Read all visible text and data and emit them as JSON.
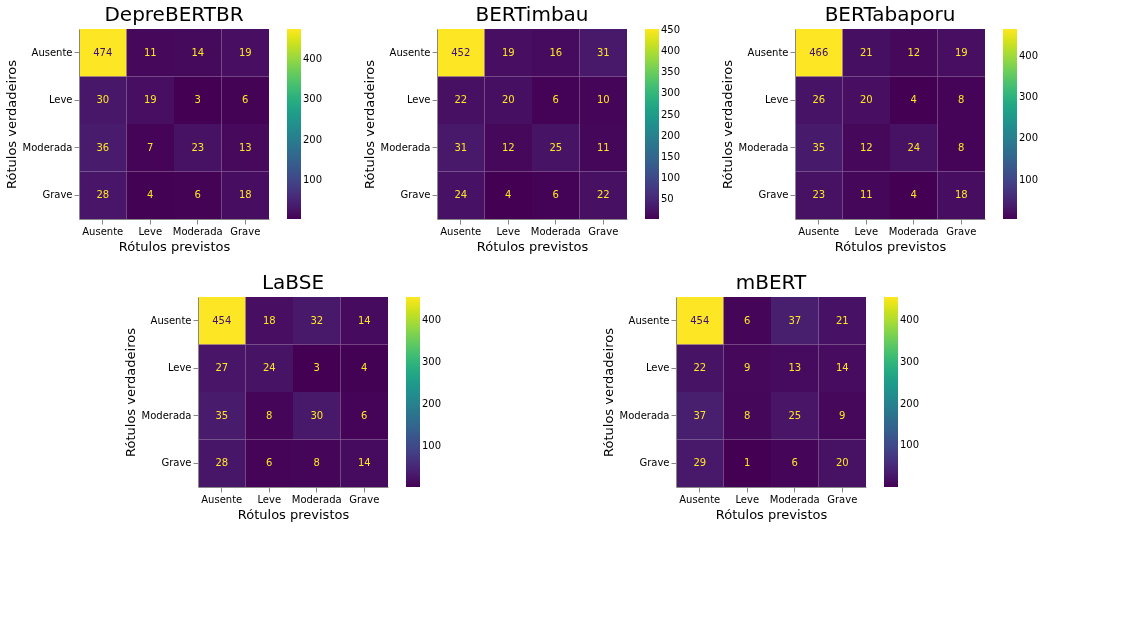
{
  "chart_data": [
    {
      "type": "heatmap",
      "title": "DepreBERTBR",
      "xlabel": "Rótulos previstos",
      "ylabel": "Rótulos verdadeiros",
      "categories": [
        "Ausente",
        "Leve",
        "Moderada",
        "Grave"
      ],
      "y_categories": [
        "Ausente",
        "Leve",
        "Moderada",
        "Grave"
      ],
      "cells": [
        [
          474,
          11,
          14,
          19
        ],
        [
          30,
          19,
          3,
          6
        ],
        [
          36,
          7,
          23,
          13
        ],
        [
          28,
          4,
          6,
          18
        ]
      ],
      "clim": [
        3,
        474
      ],
      "cticks": [
        100,
        200,
        300,
        400
      ],
      "data_labels": true
    },
    {
      "type": "heatmap",
      "title": "BERTimbau",
      "xlabel": "Rótulos previstos",
      "ylabel": "Rótulos verdadeiros",
      "categories": [
        "Ausente",
        "Leve",
        "Moderada",
        "Grave"
      ],
      "y_categories": [
        "Ausente",
        "Leve",
        "Moderada",
        "Grave"
      ],
      "cells": [
        [
          452,
          19,
          16,
          31
        ],
        [
          22,
          20,
          6,
          10
        ],
        [
          31,
          12,
          25,
          11
        ],
        [
          24,
          4,
          6,
          22
        ]
      ],
      "clim": [
        4,
        452
      ],
      "cticks": [
        50,
        100,
        150,
        200,
        250,
        300,
        350,
        400,
        450
      ],
      "data_labels": true
    },
    {
      "type": "heatmap",
      "title": "BERTabaporu",
      "xlabel": "Rótulos previstos",
      "ylabel": "Rótulos verdadeiros",
      "categories": [
        "Ausente",
        "Leve",
        "Moderada",
        "Grave"
      ],
      "y_categories": [
        "Ausente",
        "Leve",
        "Moderada",
        "Grave"
      ],
      "cells": [
        [
          466,
          21,
          12,
          19
        ],
        [
          26,
          20,
          4,
          8
        ],
        [
          35,
          12,
          24,
          8
        ],
        [
          23,
          11,
          4,
          18
        ]
      ],
      "clim": [
        4,
        466
      ],
      "cticks": [
        100,
        200,
        300,
        400
      ],
      "data_labels": true
    },
    {
      "type": "heatmap",
      "title": "LaBSE",
      "xlabel": "Rótulos previstos",
      "ylabel": "Rótulos verdadeiros",
      "categories": [
        "Ausente",
        "Leve",
        "Moderada",
        "Grave"
      ],
      "y_categories": [
        "Ausente",
        "Leve",
        "Moderada",
        "Grave"
      ],
      "cells": [
        [
          454,
          18,
          32,
          14
        ],
        [
          27,
          24,
          3,
          4
        ],
        [
          35,
          8,
          30,
          6
        ],
        [
          28,
          6,
          8,
          14
        ]
      ],
      "clim": [
        3,
        454
      ],
      "cticks": [
        100,
        200,
        300,
        400
      ],
      "data_labels": true
    },
    {
      "type": "heatmap",
      "title": "mBERT",
      "xlabel": "Rótulos previstos",
      "ylabel": "Rótulos verdadeiros",
      "categories": [
        "Ausente",
        "Leve",
        "Moderada",
        "Grave"
      ],
      "y_categories": [
        "Ausente",
        "Leve",
        "Moderada",
        "Grave"
      ],
      "cells": [
        [
          454,
          6,
          37,
          21
        ],
        [
          22,
          9,
          13,
          14
        ],
        [
          37,
          8,
          25,
          9
        ],
        [
          29,
          1,
          6,
          20
        ]
      ],
      "clim": [
        1,
        454
      ],
      "cticks": [
        100,
        200,
        300,
        400
      ],
      "data_labels": true
    }
  ]
}
